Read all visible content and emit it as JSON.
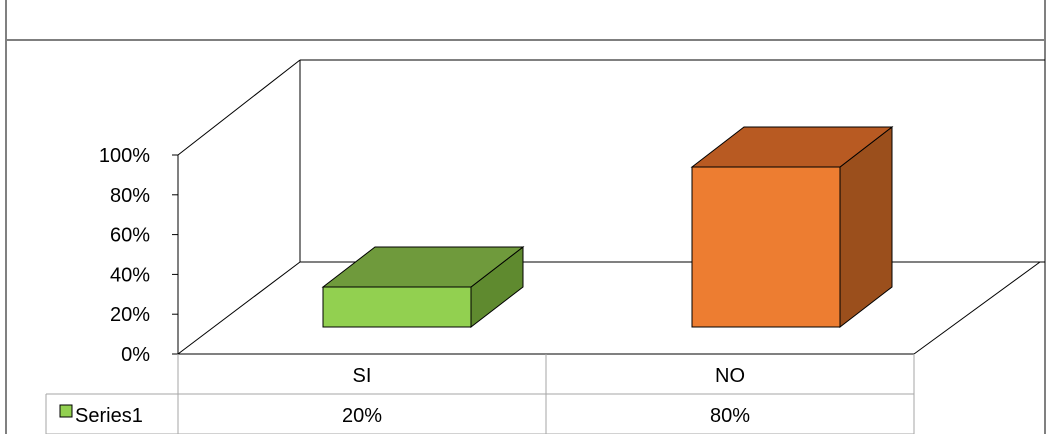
{
  "chart_data": {
    "type": "bar",
    "style": "3d-column",
    "categories": [
      "SI",
      "NO"
    ],
    "series": [
      {
        "name": "Series1",
        "values": [
          20,
          80
        ],
        "value_labels": [
          "20%",
          "80%"
        ],
        "point_colors": [
          "#92d050",
          "#ed7d31"
        ],
        "point_side_colors": [
          "#5f8a2f",
          "#9b4f1c"
        ],
        "point_top_colors": [
          "#6f9a3c",
          "#b85a22"
        ]
      }
    ],
    "y_ticks": [
      "0%",
      "20%",
      "40%",
      "60%",
      "80%",
      "100%"
    ],
    "ylim": [
      0,
      100
    ],
    "grid": false,
    "legend": "data-table-bottom"
  }
}
